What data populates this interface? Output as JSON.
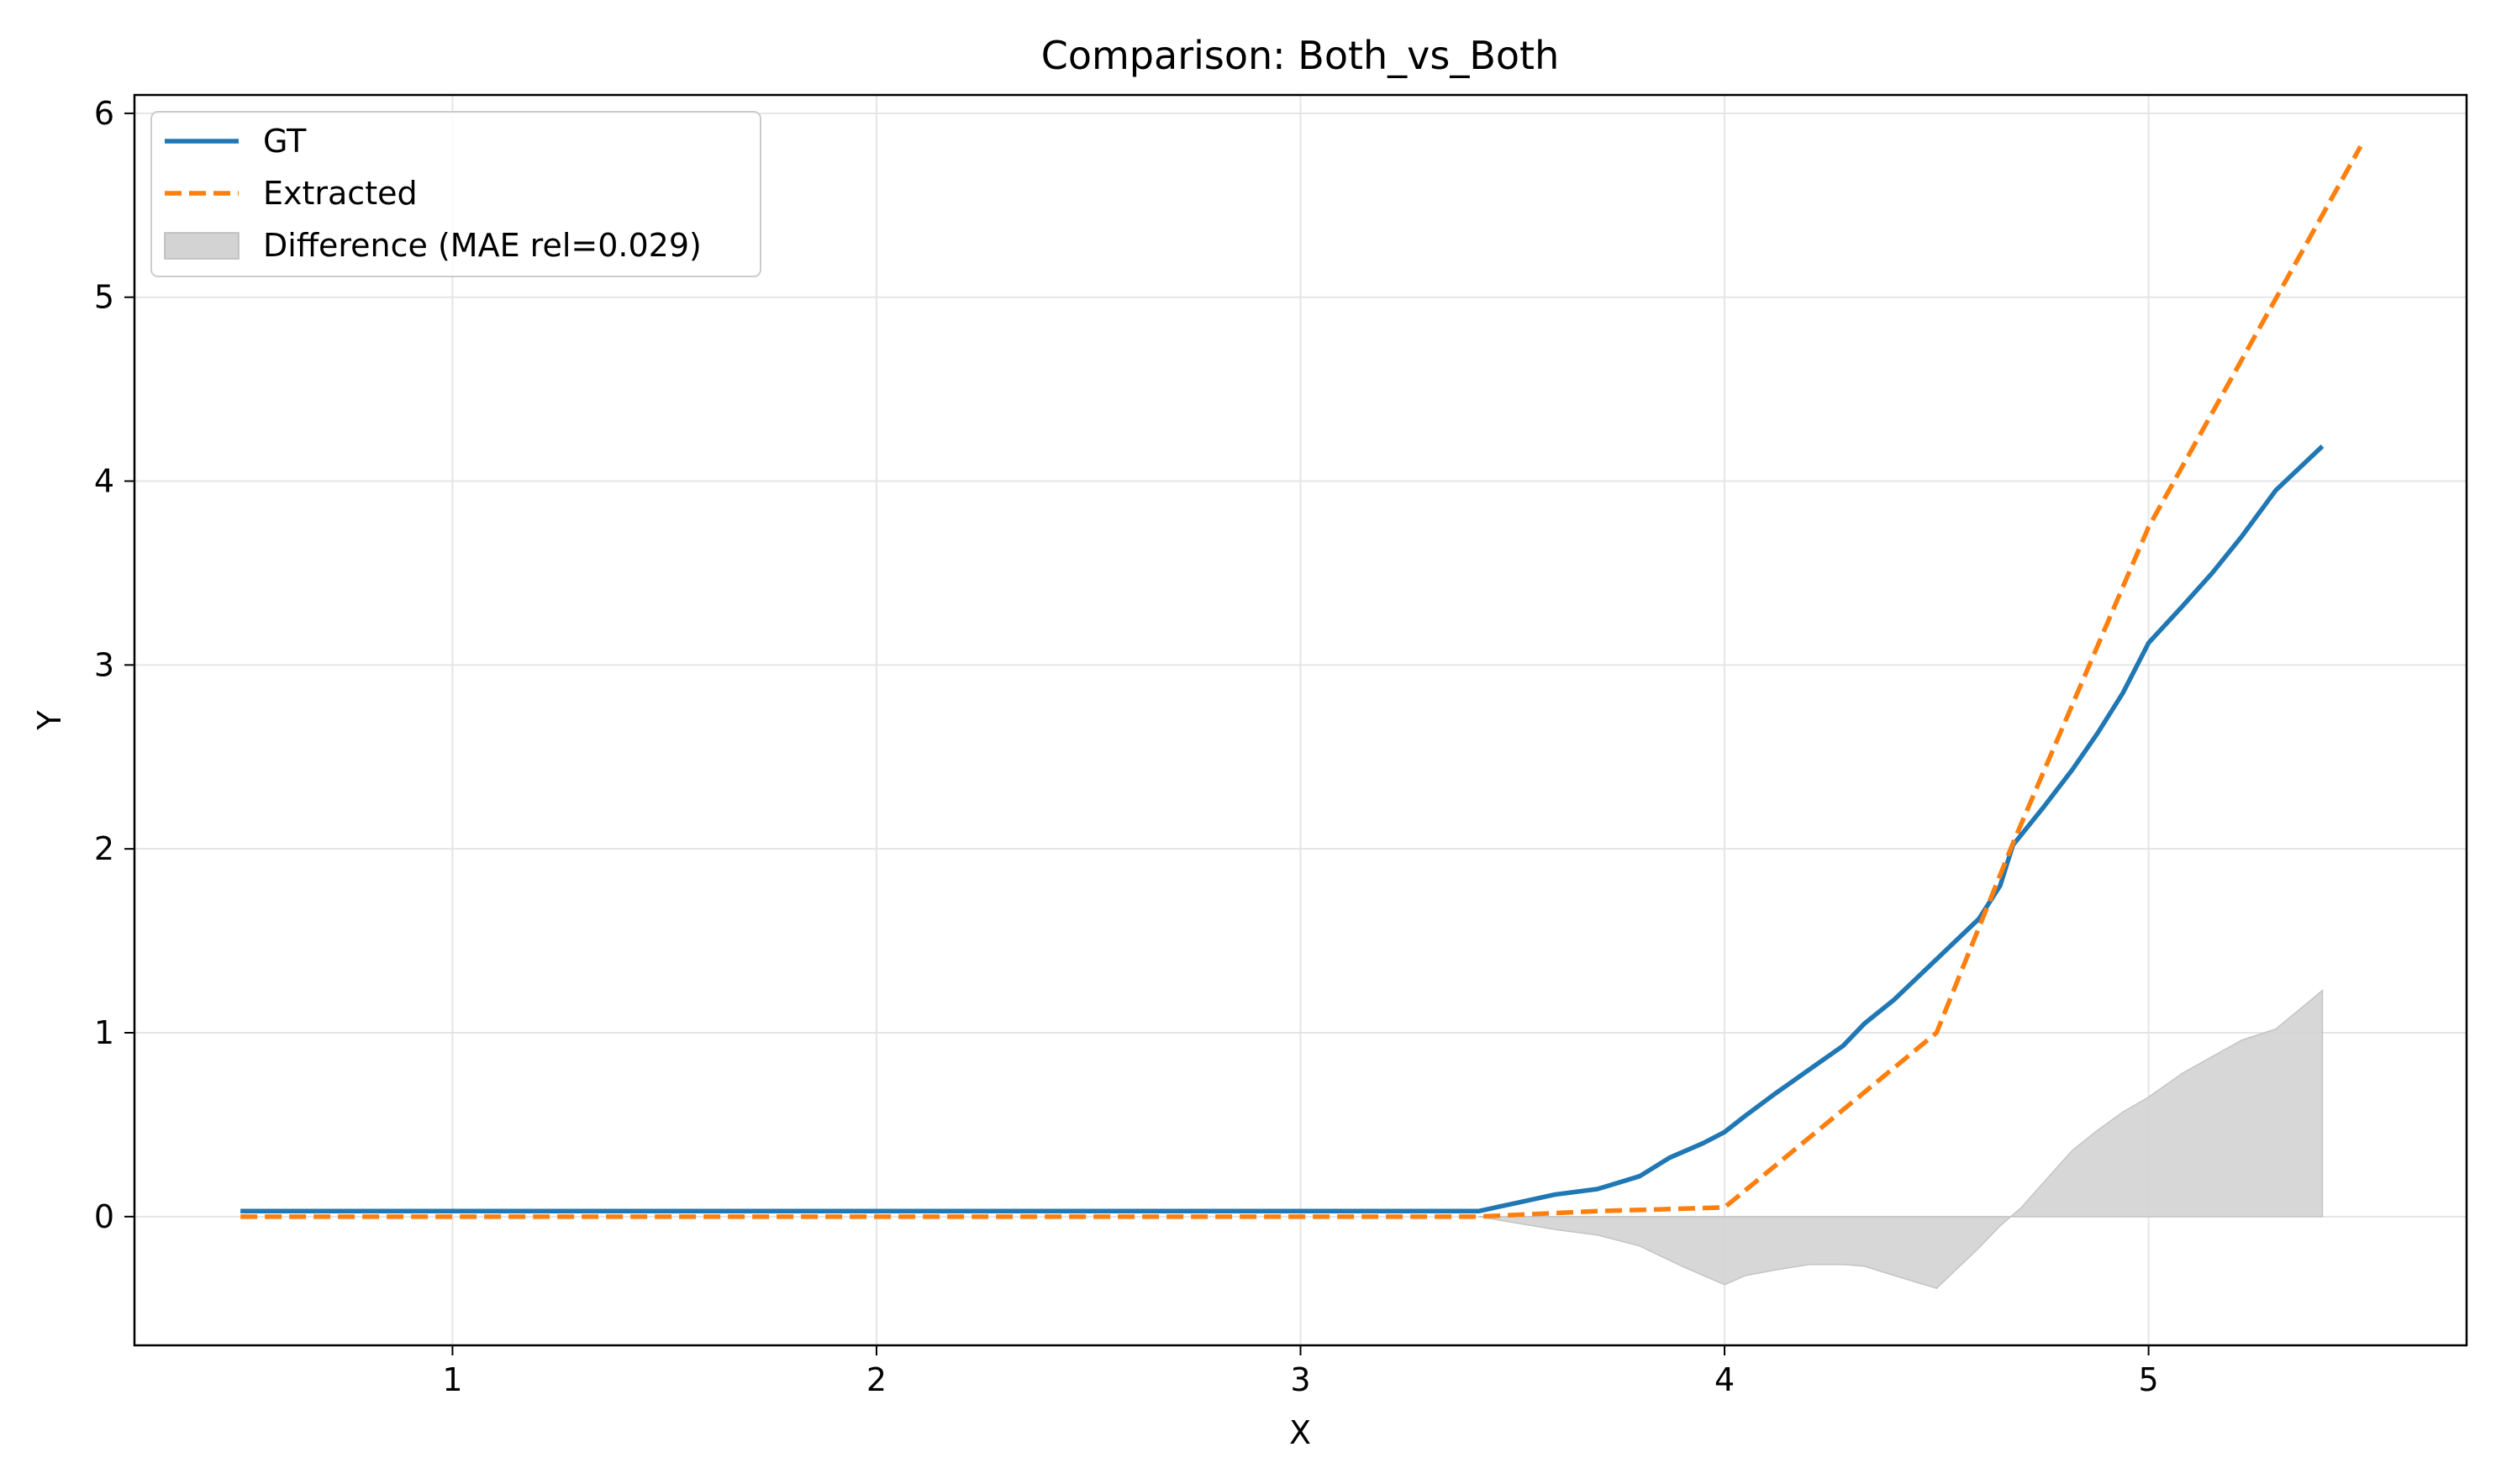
{
  "chart_data": {
    "type": "line",
    "title": "Comparison: Both_vs_Both",
    "xlabel": "X",
    "ylabel": "Y",
    "xlim": [
      0.25,
      5.75
    ],
    "ylim": [
      -0.7,
      6.1
    ],
    "xticks": [
      1,
      2,
      3,
      4,
      5
    ],
    "yticks": [
      0,
      1,
      2,
      3,
      4,
      5,
      6
    ],
    "grid": true,
    "legend_position": "upper-left",
    "series": [
      {
        "name": "GT",
        "style": "solid",
        "color": "#1f77b4",
        "x": [
          0.5,
          1.0,
          1.5,
          2.0,
          2.5,
          3.0,
          3.42,
          3.5,
          3.6,
          3.7,
          3.8,
          3.87,
          3.95,
          4.0,
          4.05,
          4.12,
          4.2,
          4.28,
          4.33,
          4.4,
          4.5,
          4.6,
          4.65,
          4.68,
          4.75,
          4.82,
          4.88,
          4.94,
          5.0,
          5.08,
          5.15,
          5.22,
          5.3,
          5.41
        ],
        "y": [
          0.03,
          0.03,
          0.03,
          0.03,
          0.03,
          0.03,
          0.03,
          0.07,
          0.12,
          0.15,
          0.22,
          0.32,
          0.4,
          0.46,
          0.55,
          0.67,
          0.8,
          0.93,
          1.05,
          1.18,
          1.4,
          1.62,
          1.8,
          2.02,
          2.22,
          2.43,
          2.63,
          2.85,
          3.12,
          3.32,
          3.5,
          3.7,
          3.95,
          4.19
        ]
      },
      {
        "name": "Extracted",
        "style": "dashed",
        "color": "#ff7f0e",
        "x": [
          0.5,
          1.0,
          1.5,
          2.0,
          2.5,
          3.0,
          3.42,
          3.7,
          4.0,
          4.5,
          4.68,
          5.0,
          5.5
        ],
        "y": [
          0.0,
          0.0,
          0.0,
          0.0,
          0.0,
          0.0,
          0.0,
          0.03,
          0.05,
          1.0,
          2.03,
          3.75,
          5.82
        ]
      }
    ],
    "difference": {
      "name": "Difference (MAE rel=0.029)",
      "color": "#d3d3d3",
      "x": [
        3.42,
        3.6,
        3.7,
        3.8,
        3.9,
        4.0,
        4.05,
        4.12,
        4.2,
        4.28,
        4.33,
        4.4,
        4.5,
        4.6,
        4.65,
        4.7,
        4.75,
        4.82,
        4.88,
        4.94,
        5.0,
        5.08,
        5.15,
        5.22,
        5.3,
        5.41
      ],
      "y": [
        0.0,
        -0.07,
        -0.1,
        -0.16,
        -0.27,
        -0.37,
        -0.32,
        -0.29,
        -0.26,
        -0.26,
        -0.27,
        -0.32,
        -0.39,
        -0.17,
        -0.05,
        0.05,
        0.18,
        0.36,
        0.47,
        0.57,
        0.65,
        0.78,
        0.87,
        0.96,
        1.02,
        1.23
      ]
    }
  }
}
